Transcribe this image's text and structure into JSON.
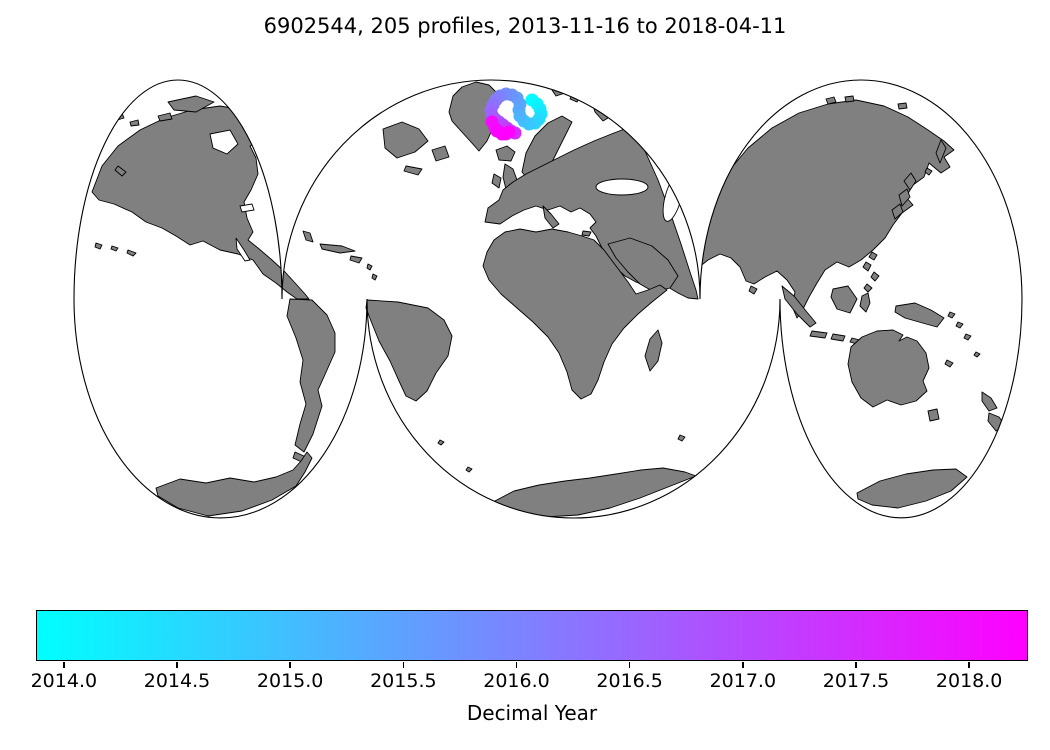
{
  "figure": {
    "background": "#ffffff",
    "land_color": "#808080",
    "outline_color": "#000000"
  },
  "chart_data": {
    "type": "scatter",
    "title": "6902544, 205 profiles, 2013-11-16 to 2018-04-11",
    "float_id": "6902544",
    "profiles_count": 205,
    "date_range": {
      "start": "2013-11-16",
      "end": "2018-04-11"
    },
    "map": {
      "projection": "interrupted world map (three lobes)",
      "points_location": "cluster northeast of Iceland / southeast of Greenland, Nordic Seas",
      "land_color": "#808080"
    },
    "colorbar": {
      "label": "Decimal Year",
      "colormap": "cool",
      "color_start": "#00ffff",
      "color_end": "#ff00ff",
      "vmin": 2013.877,
      "vmax": 2018.26,
      "ticks": [
        2014.0,
        2014.5,
        2015.0,
        2015.5,
        2016.0,
        2016.5,
        2017.0,
        2017.5,
        2018.0
      ]
    },
    "point_radius": 6.5,
    "points": [
      [
        532,
        100,
        2013.9
      ],
      [
        537,
        104,
        2014.05
      ],
      [
        540,
        109,
        2014.2
      ],
      [
        541,
        114,
        2014.35
      ],
      [
        539,
        119,
        2014.5
      ],
      [
        535,
        123,
        2014.65
      ],
      [
        529,
        124,
        2014.8
      ],
      [
        524,
        121,
        2014.95
      ],
      [
        520,
        116,
        2015.1
      ],
      [
        519,
        110,
        2015.25
      ],
      [
        520,
        104,
        2015.4
      ],
      [
        517,
        98,
        2015.55
      ],
      [
        512,
        95,
        2015.7
      ],
      [
        506,
        94,
        2015.85
      ],
      [
        500,
        96,
        2016.0
      ],
      [
        496,
        100,
        2016.15
      ],
      [
        493,
        105,
        2016.3
      ],
      [
        491,
        110,
        2016.45
      ],
      [
        492,
        115,
        2016.6
      ],
      [
        495,
        119,
        2016.75
      ],
      [
        499,
        122,
        2016.9
      ],
      [
        503,
        125,
        2017.05
      ],
      [
        507,
        128,
        2017.2
      ],
      [
        511,
        131,
        2017.35
      ],
      [
        515,
        133,
        2017.5
      ],
      [
        506,
        134,
        2017.65
      ],
      [
        500,
        132,
        2017.8
      ],
      [
        495,
        128,
        2017.95
      ],
      [
        492,
        122,
        2018.05
      ],
      [
        497,
        131,
        2018.15
      ],
      [
        502,
        134,
        2018.22
      ],
      [
        509,
        132,
        2018.27
      ]
    ]
  }
}
